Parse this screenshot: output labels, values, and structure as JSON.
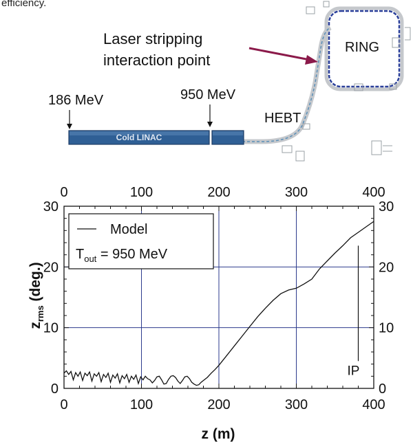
{
  "caption_fragment": "efficiency.",
  "schematic": {
    "laser_label_line1": "Laser stripping",
    "laser_label_line2": "interaction point",
    "ring_label": "RING",
    "hebt_label": "HEBT",
    "linac_label": "Cold LINAC",
    "energy_start": "186 MeV",
    "energy_end": "950 MeV",
    "colors": {
      "linac_fill": "#2f5f95",
      "linac_edge": "#1e3d66",
      "laser_arrow": "#8b1a4a",
      "ring_beam": "#2a3f9a",
      "transport_line": "#b0b4b8"
    }
  },
  "chart_data": {
    "type": "line",
    "xlabel": "z (m)",
    "ylabel_main": "z",
    "ylabel_sub": "rms",
    "ylabel_tail": " (deg.)",
    "xlim": [
      0,
      400
    ],
    "ylim": [
      0,
      30
    ],
    "x_ticks": [
      "0",
      "100",
      "200",
      "300",
      "400"
    ],
    "y_ticks": [
      "0",
      "10",
      "20",
      "30"
    ],
    "grid": true,
    "legend": {
      "placement": "top-left",
      "model_label": "Model",
      "tout_main": "T",
      "tout_sub": "out",
      "tout_value": " = 950 MeV"
    },
    "annotation": {
      "label": "IP",
      "x": 380,
      "y_top": 23.5,
      "y_bottom": 4.5
    },
    "series": [
      {
        "x": [
          0,
          3,
          6,
          9,
          12,
          15,
          18,
          21,
          24,
          27,
          30,
          33,
          36,
          39,
          42,
          45,
          48,
          51,
          54,
          57,
          60,
          63,
          66,
          69,
          72,
          75,
          78,
          81,
          84,
          87,
          90,
          93,
          96,
          99,
          102,
          105,
          108,
          111,
          114,
          117,
          120,
          123,
          126,
          129,
          132,
          135,
          138,
          141,
          144,
          147,
          150,
          153,
          156,
          159,
          162,
          165,
          168,
          171,
          174,
          177,
          180,
          185,
          190,
          195,
          200,
          210,
          220,
          230,
          240,
          250,
          260,
          270,
          280,
          290,
          300,
          310,
          320,
          330,
          340,
          350,
          360,
          370,
          380,
          390,
          400
        ],
        "y": [
          2.5,
          2.9,
          2.3,
          2.8,
          1.4,
          2.6,
          2.0,
          2.7,
          1.3,
          2.5,
          2.1,
          2.7,
          1.2,
          2.4,
          2.0,
          2.6,
          1.1,
          2.3,
          1.8,
          2.5,
          1.0,
          2.2,
          1.7,
          2.4,
          0.9,
          2.1,
          1.6,
          2.3,
          1.0,
          2.0,
          1.5,
          2.2,
          0.8,
          1.9,
          1.4,
          2.0,
          1.6,
          1.4,
          0.9,
          1.3,
          1.9,
          2.0,
          1.4,
          0.7,
          0.8,
          1.5,
          2.0,
          2.1,
          1.8,
          1.2,
          0.8,
          1.3,
          1.9,
          2.0,
          1.6,
          1.0,
          0.7,
          0.5,
          0.6,
          1.0,
          1.3,
          1.8,
          2.5,
          3.1,
          3.8,
          5.4,
          7.0,
          8.6,
          10.2,
          11.8,
          13.2,
          14.5,
          15.6,
          16.2,
          16.5,
          17.2,
          18.0,
          19.7,
          21.0,
          22.3,
          23.5,
          24.8,
          25.7,
          26.6,
          27.5
        ]
      }
    ]
  }
}
